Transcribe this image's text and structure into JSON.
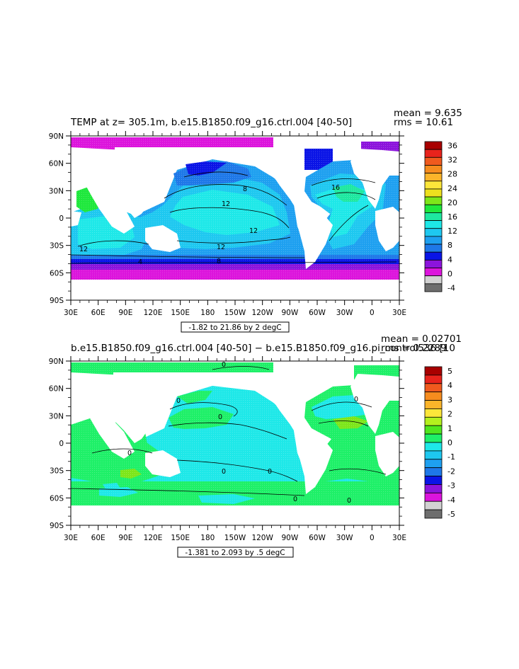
{
  "chart_data": [
    {
      "type": "heatmap",
      "title": "TEMP at z= 305.1m, b.e15.B1850.f09_g16.ctrl.004 [40-50]",
      "mean_text": "mean = 9.635",
      "rms_text": "rms = 10.61",
      "contour_info": "-1.82 to 21.86 by 2 degC",
      "x_ticks": [
        "30E",
        "60E",
        "90E",
        "120E",
        "150E",
        "180",
        "150W",
        "120W",
        "90W",
        "60W",
        "30W",
        "0",
        "30E"
      ],
      "y_ticks": [
        "90N",
        "60N",
        "30N",
        "0",
        "30S",
        "60S",
        "90S"
      ],
      "colorbar": {
        "levels": [
          "36",
          "32",
          "28",
          "24",
          "20",
          "16",
          "12",
          "8",
          "4",
          "0",
          "-4"
        ],
        "colors": [
          "#a80000",
          "#e8231c",
          "#f05a1e",
          "#f68c1e",
          "#fbb42a",
          "#fde63a",
          "#ede01e",
          "#7de61a",
          "#1ee83c",
          "#1ee8a0",
          "#1ee8e8",
          "#1ec8f0",
          "#1ea0f0",
          "#1e78e8",
          "#0a14e6",
          "#8c14dc",
          "#dc14dc",
          "#d2d2d2",
          "#6e6e6e"
        ]
      },
      "contour_labels": [
        "8",
        "16",
        "12",
        "12",
        "12",
        "12",
        "8",
        "4"
      ]
    },
    {
      "type": "heatmap",
      "title": "b.e15.B1850.f09_g16.ctrl.004 [40-50] − b.e15.B1850.f09_g16.pi_control536 [10",
      "mean_text": "mean = 0.02701",
      "rms_text": "rms = 0.2289",
      "contour_info": "-1.381 to 2.093 by .5 degC",
      "x_ticks": [
        "30E",
        "60E",
        "90E",
        "120E",
        "150E",
        "180",
        "150W",
        "120W",
        "90W",
        "60W",
        "30W",
        "0",
        "30E"
      ],
      "y_ticks": [
        "90N",
        "60N",
        "30N",
        "0",
        "30S",
        "60S",
        "90S"
      ],
      "colorbar": {
        "levels": [
          "5",
          "4",
          "3",
          "2",
          "1",
          "0",
          "-1",
          "-2",
          "-3",
          "-4",
          "-5"
        ],
        "colors": [
          "#a80000",
          "#e8231c",
          "#f05a1e",
          "#f68c1e",
          "#fbb42a",
          "#fde63a",
          "#b4f01e",
          "#50e61e",
          "#1ef068",
          "#1ee8e8",
          "#1ec8f0",
          "#1ea0f0",
          "#1e78e8",
          "#0a14e6",
          "#8c14dc",
          "#dc14dc",
          "#d2d2d2",
          "#6e6e6e"
        ]
      },
      "contour_labels": [
        "0",
        "0",
        "0",
        "0",
        "0",
        "0",
        "0",
        "0",
        "0"
      ]
    }
  ]
}
